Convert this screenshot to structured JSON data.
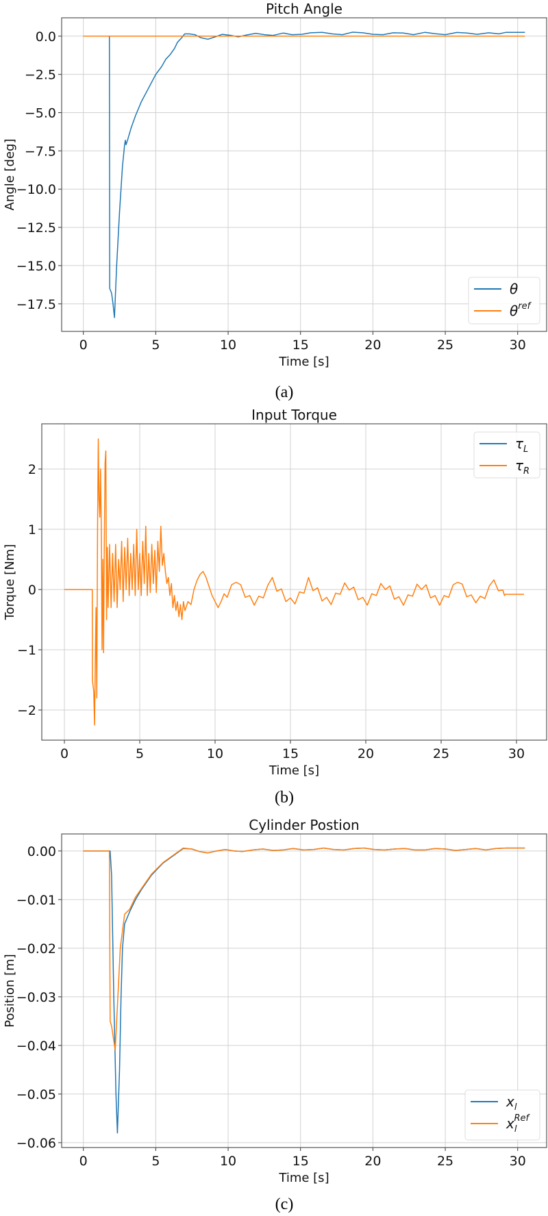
{
  "colors": {
    "blue": "#1f77b4",
    "orange": "#ff7f0e",
    "grid": "#d0d0d0",
    "axes": "#555555"
  },
  "chart_data": [
    {
      "type": "line",
      "caption": "(a)",
      "title": "Pitch Angle",
      "xlabel": "Time [s]",
      "ylabel": "Angle [deg]",
      "xlim": [
        -1.5,
        32
      ],
      "ylim": [
        -19.3,
        1.2
      ],
      "xticks": [
        0,
        5,
        10,
        15,
        20,
        25,
        30
      ],
      "xtick_labels": [
        "0",
        "5",
        "10",
        "15",
        "20",
        "25",
        "30"
      ],
      "yticks": [
        0,
        -2.5,
        -5,
        -7.5,
        -10,
        -12.5,
        -15,
        -17.5
      ],
      "ytick_labels": [
        "0.0",
        "−2.5",
        "−5.0",
        "−7.5",
        "−10.0",
        "−12.5",
        "−15.0",
        "−17.5"
      ],
      "grid": true,
      "legend_position": "bottom-right",
      "series": [
        {
          "name": "θ",
          "sup": "",
          "sub": "",
          "color": "#1f77b4",
          "x": [
            0,
            1.8,
            1.82,
            1.95,
            2.05,
            2.15,
            2.3,
            2.5,
            2.7,
            2.85,
            2.9,
            2.95,
            3.05,
            3.3,
            3.6,
            4.0,
            4.5,
            5.0,
            5.4,
            5.7,
            6.0,
            6.3,
            6.5,
            6.8,
            7.0,
            7.3,
            7.7,
            8.1,
            8.6,
            9.1,
            9.6,
            10.2,
            10.7,
            11.3,
            11.9,
            12.5,
            13.1,
            13.8,
            14.4,
            15.1,
            15.7,
            16.5,
            17.2,
            17.9,
            18.6,
            19.3,
            20.0,
            20.7,
            21.4,
            22.1,
            22.8,
            23.6,
            24.3,
            25.0,
            25.8,
            26.5,
            27.2,
            28.0,
            28.7,
            29.2,
            30.5
          ],
          "y": [
            0,
            0,
            -16.5,
            -16.8,
            -17.5,
            -18.4,
            -15,
            -11.5,
            -8.5,
            -7.1,
            -6.8,
            -7.1,
            -6.8,
            -6.0,
            -5.2,
            -4.3,
            -3.4,
            -2.5,
            -2.0,
            -1.5,
            -1.2,
            -0.8,
            -0.4,
            -0.1,
            0.15,
            0.15,
            0.1,
            -0.1,
            -0.2,
            -0.05,
            0.12,
            0.05,
            -0.05,
            0.08,
            0.18,
            0.1,
            0.05,
            0.2,
            0.1,
            0.12,
            0.22,
            0.25,
            0.15,
            0.1,
            0.26,
            0.22,
            0.12,
            0.1,
            0.22,
            0.2,
            0.1,
            0.25,
            0.16,
            0.1,
            0.24,
            0.2,
            0.12,
            0.22,
            0.15,
            0.25,
            0.25
          ]
        },
        {
          "name": "θ",
          "sup": "ref",
          "sub": "",
          "color": "#ff7f0e",
          "x": [
            0,
            30.5
          ],
          "y": [
            0,
            0
          ]
        }
      ]
    },
    {
      "type": "line",
      "caption": "(b)",
      "title": "Input Torque",
      "xlabel": "Time [s]",
      "ylabel": "Torque [Nm]",
      "xlim": [
        -1.5,
        32
      ],
      "ylim": [
        -2.5,
        2.75
      ],
      "xticks": [
        0,
        5,
        10,
        15,
        20,
        25,
        30
      ],
      "xtick_labels": [
        "0",
        "5",
        "10",
        "15",
        "20",
        "25",
        "30"
      ],
      "yticks": [
        2,
        1,
        0,
        -1,
        -2
      ],
      "ytick_labels": [
        "2",
        "1",
        "0",
        "−1",
        "−2"
      ],
      "grid": true,
      "legend_position": "top-right",
      "series": [
        {
          "name": "τ",
          "sup": "",
          "sub": "L",
          "color": "#1f77b4",
          "x": [],
          "y": []
        },
        {
          "name": "τ",
          "sup": "",
          "sub": "R",
          "color": "#ff7f0e",
          "x": [
            0,
            1.85,
            1.86,
            1.95,
            2.0,
            2.05,
            2.1,
            2.15,
            2.2,
            2.25,
            2.3,
            2.35,
            2.4,
            2.45,
            2.5,
            2.55,
            2.6,
            2.65,
            2.7,
            2.75,
            2.8,
            2.85,
            2.9,
            3.0,
            3.1,
            3.2,
            3.3,
            3.4,
            3.5,
            3.6,
            3.7,
            3.8,
            3.9,
            4.0,
            4.1,
            4.2,
            4.3,
            4.4,
            4.5,
            4.6,
            4.7,
            4.8,
            4.9,
            5.0,
            5.1,
            5.2,
            5.3,
            5.4,
            5.5,
            5.6,
            5.7,
            5.8,
            5.9,
            6.0,
            6.1,
            6.2,
            6.3,
            6.4,
            6.5,
            6.6,
            6.7,
            6.8,
            6.9,
            7.0,
            7.1,
            7.2,
            7.3,
            7.4,
            7.5,
            7.6,
            7.7,
            7.8,
            7.9,
            8.0,
            8.2,
            8.4,
            8.6,
            8.8,
            9.0,
            9.2,
            9.4,
            9.6,
            9.8,
            10.0,
            10.2,
            10.4,
            10.6,
            10.8,
            11.1,
            11.4,
            11.7,
            12.0,
            12.3,
            12.6,
            12.9,
            13.2,
            13.5,
            13.8,
            14.1,
            14.4,
            14.7,
            15.0,
            15.3,
            15.6,
            15.9,
            16.2,
            16.5,
            16.8,
            17.1,
            17.4,
            17.7,
            18.0,
            18.3,
            18.6,
            18.9,
            19.2,
            19.5,
            19.8,
            20.1,
            20.4,
            20.7,
            21.0,
            21.3,
            21.6,
            21.9,
            22.2,
            22.5,
            22.8,
            23.1,
            23.4,
            23.7,
            24.0,
            24.3,
            24.6,
            24.9,
            25.2,
            25.5,
            25.8,
            26.1,
            26.4,
            26.7,
            27.0,
            27.3,
            27.6,
            27.9,
            28.2,
            28.5,
            28.8,
            29.1,
            29.2,
            29.25,
            30.5
          ],
          "y": [
            0,
            0,
            -1.5,
            -1.7,
            -2.25,
            -1.2,
            -0.3,
            -1.8,
            1.0,
            2.5,
            1.5,
            1.2,
            2.0,
            1.0,
            -1.0,
            0.5,
            -1.05,
            0.8,
            2.1,
            2.3,
            -0.5,
            0.7,
            -0.3,
            0.75,
            -0.3,
            0.6,
            -0.2,
            0.75,
            -0.3,
            0.5,
            0.0,
            0.8,
            -0.2,
            0.7,
            0.0,
            0.85,
            -0.1,
            0.6,
            0.0,
            0.75,
            -0.1,
            1.0,
            0.0,
            0.6,
            -0.1,
            0.8,
            0.1,
            1.05,
            -0.1,
            0.6,
            -0.05,
            0.75,
            0.1,
            0.65,
            -0.05,
            0.8,
            0.3,
            1.05,
            0.4,
            0.6,
            0.3,
            0.1,
            0.2,
            -0.1,
            0.1,
            -0.3,
            -0.1,
            -0.35,
            -0.2,
            -0.45,
            -0.25,
            -0.5,
            -0.2,
            -0.35,
            -0.2,
            -0.25,
            0.0,
            0.15,
            0.25,
            0.3,
            0.2,
            0.05,
            -0.1,
            -0.2,
            -0.3,
            -0.2,
            -0.07,
            -0.13,
            0.08,
            0.12,
            0.08,
            -0.13,
            -0.1,
            -0.26,
            -0.11,
            -0.14,
            0.07,
            0.2,
            -0.03,
            0.01,
            -0.2,
            -0.14,
            -0.24,
            -0.04,
            -0.06,
            0.2,
            -0.02,
            0.03,
            -0.19,
            -0.13,
            -0.25,
            -0.06,
            -0.08,
            0.11,
            -0.01,
            0.04,
            -0.17,
            -0.13,
            -0.26,
            -0.07,
            -0.1,
            0.1,
            0.0,
            0.06,
            -0.16,
            -0.12,
            -0.26,
            -0.09,
            -0.11,
            0.09,
            0.0,
            0.08,
            -0.14,
            -0.1,
            -0.26,
            -0.1,
            -0.13,
            0.08,
            0.12,
            0.09,
            -0.12,
            -0.09,
            -0.22,
            -0.11,
            -0.15,
            0.06,
            0.16,
            -0.02,
            -0.01,
            -0.1,
            -0.08,
            -0.08
          ]
        }
      ]
    },
    {
      "type": "line",
      "caption": "(c)",
      "title": "Cylinder Postion",
      "xlabel": "Time [s]",
      "ylabel": "Position [m]",
      "xlim": [
        -1.5,
        32
      ],
      "ylim": [
        -0.061,
        0.0035
      ],
      "xticks": [
        0,
        5,
        10,
        15,
        20,
        25,
        30
      ],
      "xtick_labels": [
        "0",
        "5",
        "10",
        "15",
        "20",
        "25",
        "30"
      ],
      "yticks": [
        0,
        -0.01,
        -0.02,
        -0.03,
        -0.04,
        -0.05,
        -0.06
      ],
      "ytick_labels": [
        "0.00",
        "−0.01",
        "−0.02",
        "−0.03",
        "−0.04",
        "−0.05",
        "−0.06"
      ],
      "grid": true,
      "legend_position": "bottom-right",
      "series": [
        {
          "name": "x",
          "sup": "",
          "sub": "l",
          "color": "#1f77b4",
          "x": [
            0,
            1.8,
            1.85,
            1.95,
            2.1,
            2.25,
            2.35,
            2.5,
            2.6,
            2.7,
            2.85,
            3.2,
            3.6,
            4.0,
            4.7,
            5.5,
            6.2,
            6.9,
            7.5,
            8.0,
            8.6,
            9.2,
            9.8,
            10.4,
            11.0,
            11.7,
            12.4,
            13.1,
            13.8,
            14.5,
            15.2,
            15.9,
            16.6,
            17.3,
            18.0,
            18.7,
            19.4,
            20.1,
            20.8,
            21.5,
            22.2,
            22.9,
            23.6,
            24.3,
            25.0,
            25.7,
            26.4,
            27.1,
            27.8,
            28.5,
            29.2,
            30.5
          ],
          "y": [
            0,
            0,
            0,
            -0.005,
            -0.03,
            -0.05,
            -0.058,
            -0.045,
            -0.03,
            -0.02,
            -0.015,
            -0.0125,
            -0.01,
            -0.008,
            -0.005,
            -0.0025,
            -0.001,
            0.0005,
            0.0004,
            -0.0001,
            -0.0004,
            0.0,
            0.0003,
            0.0,
            -0.0001,
            0.0002,
            0.0004,
            0.0001,
            0.0002,
            0.0005,
            0.0002,
            0.0003,
            0.0006,
            0.0003,
            0.0002,
            0.0005,
            0.0006,
            0.0003,
            0.0002,
            0.0004,
            0.0005,
            0.0002,
            0.0002,
            0.0005,
            0.0004,
            0.0001,
            0.0003,
            0.0005,
            0.0002,
            0.0005,
            0.0006,
            0.0006
          ]
        },
        {
          "name": "x",
          "sup": "Ref",
          "sub": "l",
          "color": "#ff7f0e",
          "x": [
            0,
            1.8,
            1.85,
            1.95,
            2.2,
            2.3,
            2.55,
            2.85,
            3.2,
            3.6,
            4.0,
            4.7,
            5.5,
            6.2,
            6.9,
            7.5,
            8.0,
            8.6,
            9.2,
            9.8,
            10.4,
            11.0,
            11.7,
            12.4,
            13.1,
            13.8,
            14.5,
            15.2,
            15.9,
            16.6,
            17.3,
            18.0,
            18.7,
            19.4,
            20.1,
            20.8,
            21.5,
            22.2,
            22.9,
            23.6,
            24.3,
            25.0,
            25.7,
            26.4,
            27.1,
            27.8,
            28.5,
            29.2,
            30.5
          ],
          "y": [
            0,
            0,
            -0.035,
            -0.036,
            -0.041,
            -0.035,
            -0.02,
            -0.013,
            -0.012,
            -0.0095,
            -0.0078,
            -0.0048,
            -0.0024,
            -0.0009,
            0.0006,
            0.0004,
            -0.0001,
            -0.0004,
            0.0,
            0.0003,
            0.0,
            -0.0001,
            0.0002,
            0.0004,
            0.0001,
            0.0002,
            0.0005,
            0.0002,
            0.0003,
            0.0006,
            0.0003,
            0.0002,
            0.0005,
            0.0006,
            0.0003,
            0.0002,
            0.0004,
            0.0005,
            0.0002,
            0.0002,
            0.0005,
            0.0004,
            0.0001,
            0.0003,
            0.0005,
            0.0002,
            0.0005,
            0.0006,
            0.0006
          ]
        }
      ]
    }
  ]
}
